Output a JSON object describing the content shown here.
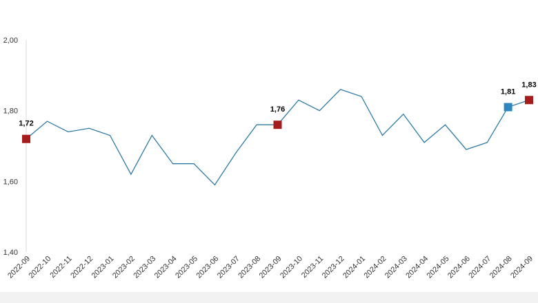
{
  "chart_data": {
    "type": "line",
    "title": "",
    "xlabel": "",
    "ylabel": "",
    "ylim": [
      1.4,
      2.0
    ],
    "yticks": [
      "1,40",
      "1,60",
      "1,80",
      "2,00"
    ],
    "grid": false,
    "x": [
      "2022-09",
      "2022-10",
      "2022-11",
      "2022-12",
      "2023-01",
      "2023-02",
      "2023-03",
      "2023-04",
      "2023-05",
      "2023-06",
      "2023-07",
      "2023-08",
      "2023-09",
      "2023-10",
      "2023-11",
      "2023-12",
      "2024-01",
      "2024-02",
      "2024-03",
      "2024-04",
      "2024-05",
      "2024-06",
      "2024-07",
      "2024-08",
      "2024-09"
    ],
    "series": [
      {
        "values": [
          1.72,
          1.77,
          1.74,
          1.75,
          1.73,
          1.62,
          1.73,
          1.65,
          1.65,
          1.59,
          1.68,
          1.76,
          1.76,
          1.83,
          1.8,
          1.86,
          1.84,
          1.73,
          1.79,
          1.71,
          1.76,
          1.69,
          1.71,
          1.81,
          1.83
        ],
        "color": "#2e7aa3"
      }
    ],
    "highlights": [
      {
        "index": 0,
        "label": "1,72",
        "color": "#a61c1c"
      },
      {
        "index": 12,
        "label": "1,76",
        "color": "#a61c1c"
      },
      {
        "index": 23,
        "label": "1,81",
        "color": "#2f86bf"
      },
      {
        "index": 24,
        "label": "1,83",
        "color": "#a61c1c"
      }
    ]
  }
}
